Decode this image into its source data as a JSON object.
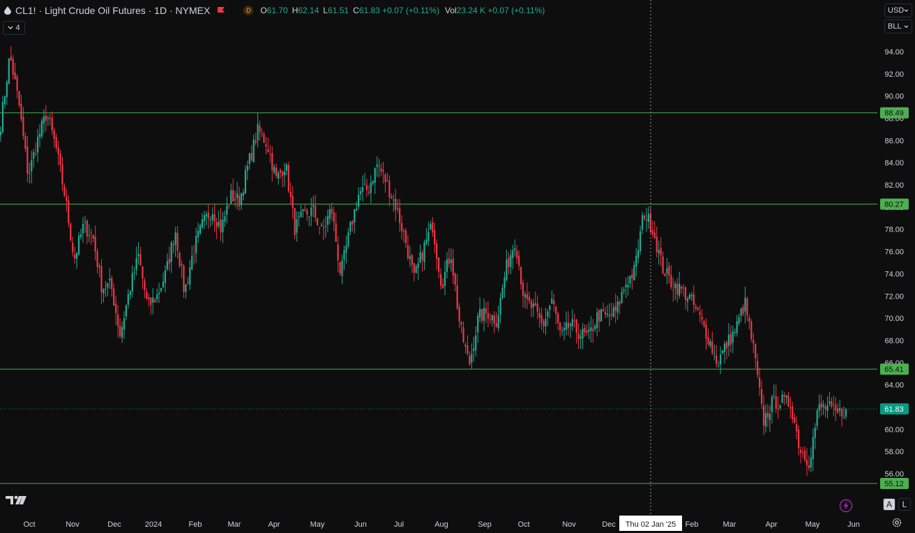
{
  "header": {
    "title": "CL1! · Light Crude Oil Futures · 1D · NYMEX",
    "delay_badge": "D",
    "ohlc": [
      {
        "key": "O",
        "value": "61.70"
      },
      {
        "key": "H",
        "value": "62.14"
      },
      {
        "key": "L",
        "value": "61.51"
      },
      {
        "key": "C",
        "value": "61.83 +0.07 (+0.11%)"
      }
    ],
    "vol_label": "Vol",
    "vol_value": "23.24 K +0.07 (+0.11%)",
    "collapse_count": "4"
  },
  "toolbar": {
    "currency": "USD",
    "unit": "BLL",
    "auto_label": "A",
    "log_label": "L"
  },
  "crosshair": {
    "date_label": "Thu 02 Jan '25"
  },
  "colors": {
    "up": "#22ab94",
    "down": "#f23645",
    "level_line": "#4caf50",
    "level_label_bg": "#4caf50",
    "last_price_bg": "#089981"
  },
  "icons": [
    "drop-icon",
    "flag-icon",
    "tradingview-logo",
    "lightning-icon",
    "gear-icon",
    "chevron-down-icon"
  ],
  "chart_data": {
    "type": "candlestick",
    "title": "CL1! · Light Crude Oil Futures · 1D · NYMEX",
    "ylim": [
      54,
      95.5
    ],
    "y_ticks": [
      "56.00",
      "58.00",
      "60.00",
      "62.00",
      "64.00",
      "66.00",
      "68.00",
      "70.00",
      "72.00",
      "74.00",
      "76.00",
      "78.00",
      "80.00",
      "82.00",
      "84.00",
      "86.00",
      "88.00",
      "90.00",
      "92.00",
      "94.00"
    ],
    "x_ticks": [
      "Oct",
      "Nov",
      "Dec",
      "2024",
      "Feb",
      "Mar",
      "Apr",
      "May",
      "Jun",
      "Jul",
      "Aug",
      "Sep",
      "Oct",
      "Nov",
      "Dec",
      "Feb",
      "Mar",
      "Apr",
      "May",
      "Jun"
    ],
    "horizontal_levels": [
      88.49,
      80.27,
      65.41,
      55.12
    ],
    "last_price": 61.83,
    "crosshair_x": "Thu 02 Jan '25",
    "close_path": [
      {
        "date": "Sep '23 end",
        "close": 87.5
      },
      {
        "date": "Sep 28",
        "close": 93.7
      },
      {
        "date": "Oct 2",
        "close": 89.2
      },
      {
        "date": "Oct 6",
        "close": 82.8
      },
      {
        "date": "Oct 10",
        "close": 86.0
      },
      {
        "date": "Oct 18",
        "close": 88.5
      },
      {
        "date": "Oct 25",
        "close": 85.4
      },
      {
        "date": "Nov 1",
        "close": 81.0
      },
      {
        "date": "Nov 8",
        "close": 75.3
      },
      {
        "date": "Nov 14",
        "close": 78.3
      },
      {
        "date": "Nov 20",
        "close": 77.5
      },
      {
        "date": "Nov 28",
        "close": 72.8
      },
      {
        "date": "Dec 5",
        "close": 73.0
      },
      {
        "date": "Dec 12",
        "close": 68.5
      },
      {
        "date": "Dec 18",
        "close": 72.5
      },
      {
        "date": "Dec 26",
        "close": 75.6
      },
      {
        "date": "Jan 2",
        "close": 71.0
      },
      {
        "date": "Jan 10",
        "close": 72.0
      },
      {
        "date": "Jan 18",
        "close": 74.1
      },
      {
        "date": "Jan 26",
        "close": 78.0
      },
      {
        "date": "Feb 2",
        "close": 72.3
      },
      {
        "date": "Feb 8",
        "close": 76.2
      },
      {
        "date": "Feb 16",
        "close": 78.5
      },
      {
        "date": "Mar 1",
        "close": 79.8
      },
      {
        "date": "Mar 8",
        "close": 78.0
      },
      {
        "date": "Mar 14",
        "close": 81.0
      },
      {
        "date": "Mar 22",
        "close": 80.6
      },
      {
        "date": "Apr 1",
        "close": 84.0
      },
      {
        "date": "Apr 5",
        "close": 86.9
      },
      {
        "date": "Apr 12",
        "close": 85.7
      },
      {
        "date": "Apr 18",
        "close": 82.5
      },
      {
        "date": "Apr 26",
        "close": 83.9
      },
      {
        "date": "May 3",
        "close": 78.1
      },
      {
        "date": "May 10",
        "close": 79.3
      },
      {
        "date": "May 17",
        "close": 79.7
      },
      {
        "date": "May 24",
        "close": 77.7
      },
      {
        "date": "Jun 1",
        "close": 79.9
      },
      {
        "date": "Jun 4",
        "close": 73.9
      },
      {
        "date": "Jun 10",
        "close": 77.9
      },
      {
        "date": "Jun 20",
        "close": 81.3
      },
      {
        "date": "Jun 28",
        "close": 81.6
      },
      {
        "date": "Jul 5",
        "close": 83.9
      },
      {
        "date": "Jul 12",
        "close": 82.2
      },
      {
        "date": "Jul 20",
        "close": 80.1
      },
      {
        "date": "Jul 26",
        "close": 77.2
      },
      {
        "date": "Aug 2",
        "close": 73.5
      },
      {
        "date": "Aug 8",
        "close": 76.2
      },
      {
        "date": "Aug 14",
        "close": 78.4
      },
      {
        "date": "Aug 22",
        "close": 73.0
      },
      {
        "date": "Aug 28",
        "close": 75.9
      },
      {
        "date": "Sep 4",
        "close": 69.2
      },
      {
        "date": "Sep 10",
        "close": 65.8
      },
      {
        "date": "Sep 16",
        "close": 70.1
      },
      {
        "date": "Sep 24",
        "close": 70.5
      },
      {
        "date": "Oct 1",
        "close": 69.8
      },
      {
        "date": "Oct 4",
        "close": 74.4
      },
      {
        "date": "Oct 7",
        "close": 77.1
      },
      {
        "date": "Oct 14",
        "close": 71.6
      },
      {
        "date": "Oct 22",
        "close": 70.8
      },
      {
        "date": "Oct 30",
        "close": 69.3
      },
      {
        "date": "Nov 6",
        "close": 71.7
      },
      {
        "date": "Nov 12",
        "close": 68.2
      },
      {
        "date": "Nov 20",
        "close": 69.5
      },
      {
        "date": "Nov 28",
        "close": 68.6
      },
      {
        "date": "Dec 5",
        "close": 68.3
      },
      {
        "date": "Dec 12",
        "close": 70.3
      },
      {
        "date": "Dec 18",
        "close": 70.1
      },
      {
        "date": "Dec 26",
        "close": 70.6
      },
      {
        "date": "Jan 2",
        "close": 73.1
      },
      {
        "date": "Jan 8",
        "close": 74.3
      },
      {
        "date": "Jan 15",
        "close": 79.6
      },
      {
        "date": "Jan 20",
        "close": 78.0
      },
      {
        "date": "Jan 27",
        "close": 74.6
      },
      {
        "date": "Feb 3",
        "close": 73.2
      },
      {
        "date": "Feb 10",
        "close": 72.6
      },
      {
        "date": "Feb 18",
        "close": 71.8
      },
      {
        "date": "Feb 25",
        "close": 70.2
      },
      {
        "date": "Mar 4",
        "close": 68.3
      },
      {
        "date": "Mar 10",
        "close": 66.0
      },
      {
        "date": "Mar 18",
        "close": 67.6
      },
      {
        "date": "Mar 26",
        "close": 69.0
      },
      {
        "date": "Apr 1",
        "close": 71.4
      },
      {
        "date": "Apr 3",
        "close": 66.9
      },
      {
        "date": "Apr 7",
        "close": 60.7
      },
      {
        "date": "Apr 9",
        "close": 62.4
      },
      {
        "date": "Apr 16",
        "close": 62.5
      },
      {
        "date": "Apr 23",
        "close": 62.3
      },
      {
        "date": "Apr 30",
        "close": 58.2
      },
      {
        "date": "May 5",
        "close": 57.1
      },
      {
        "date": "May 12",
        "close": 61.9
      },
      {
        "date": "May 20",
        "close": 62.0
      },
      {
        "date": "May 27",
        "close": 61.3
      },
      {
        "date": "May 30",
        "close": 61.83
      }
    ]
  }
}
